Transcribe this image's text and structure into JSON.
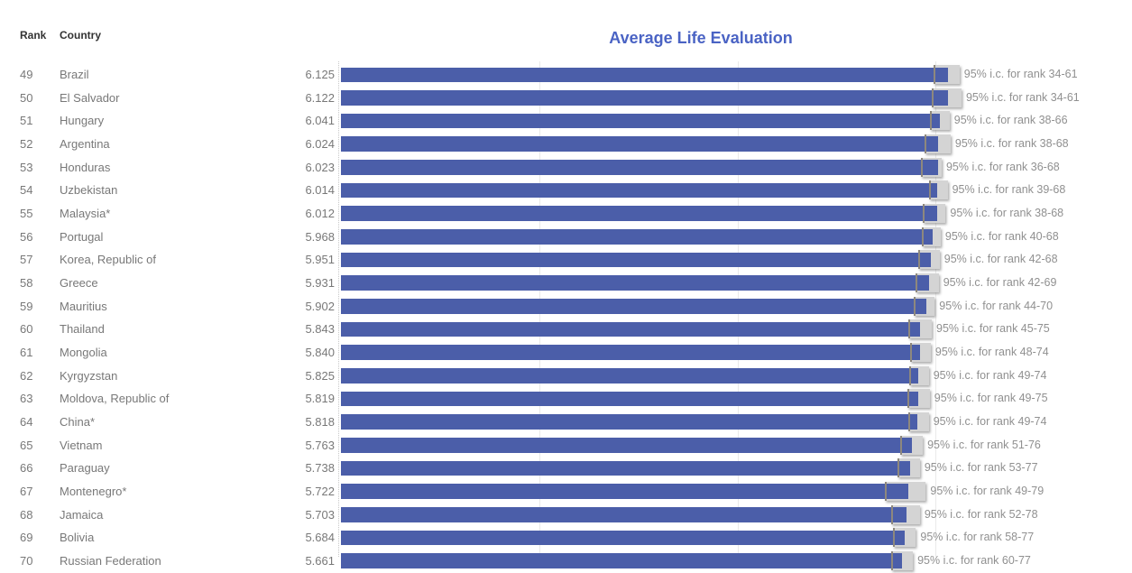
{
  "header": {
    "rank_label": "Rank",
    "country_label": "Country"
  },
  "chart_data": {
    "type": "bar",
    "title": "Average Life Evaluation",
    "title_color": "#4a63c4",
    "bar_color": "#4b5ea9",
    "ci_box_color": "#d4d4d4",
    "ci_text_color": "#909090",
    "label_text_color": "#787878",
    "xlim": [
      0,
      6.5
    ],
    "gridlines": [
      2,
      4,
      6
    ],
    "grid_on": true,
    "legend_position": "none",
    "xlabel": "",
    "ylabel": "",
    "rows": [
      {
        "rank": "49",
        "country": "Brazil",
        "value": 6.125,
        "value_label": "6.125",
        "ci_label": "95% i.c. for rank 34-61",
        "ci_low": 5.98,
        "ci_high": 6.24
      },
      {
        "rank": "50",
        "country": "El Salvador",
        "value": 6.122,
        "value_label": "6.122",
        "ci_label": "95% i.c. for rank 34-61",
        "ci_low": 5.96,
        "ci_high": 6.26
      },
      {
        "rank": "51",
        "country": "Hungary",
        "value": 6.041,
        "value_label": "6.041",
        "ci_label": "95% i.c. for rank 38-66",
        "ci_low": 5.94,
        "ci_high": 6.14
      },
      {
        "rank": "52",
        "country": "Argentina",
        "value": 6.024,
        "value_label": "6.024",
        "ci_label": "95% i.c. for rank 38-68",
        "ci_low": 5.89,
        "ci_high": 6.15
      },
      {
        "rank": "53",
        "country": "Honduras",
        "value": 6.023,
        "value_label": "6.023",
        "ci_label": "95% i.c. for rank 36-68",
        "ci_low": 5.85,
        "ci_high": 6.06
      },
      {
        "rank": "54",
        "country": "Uzbekistan",
        "value": 6.014,
        "value_label": "6.014",
        "ci_label": "95% i.c. for rank 39-68",
        "ci_low": 5.93,
        "ci_high": 6.12
      },
      {
        "rank": "55",
        "country": "Malaysia*",
        "value": 6.012,
        "value_label": "6.012",
        "ci_label": "95% i.c. for rank 38-68",
        "ci_low": 5.87,
        "ci_high": 6.1
      },
      {
        "rank": "56",
        "country": "Portugal",
        "value": 5.968,
        "value_label": "5.968",
        "ci_label": "95% i.c. for rank 40-68",
        "ci_low": 5.86,
        "ci_high": 6.05
      },
      {
        "rank": "57",
        "country": "Korea, Republic of",
        "value": 5.951,
        "value_label": "5.951",
        "ci_label": "95% i.c. for rank 42-68",
        "ci_low": 5.82,
        "ci_high": 6.04
      },
      {
        "rank": "58",
        "country": "Greece",
        "value": 5.931,
        "value_label": "5.931",
        "ci_label": "95% i.c. for rank 42-69",
        "ci_low": 5.8,
        "ci_high": 6.03
      },
      {
        "rank": "59",
        "country": "Mauritius",
        "value": 5.902,
        "value_label": "5.902",
        "ci_label": "95% i.c. for rank 44-70",
        "ci_low": 5.78,
        "ci_high": 5.99
      },
      {
        "rank": "60",
        "country": "Thailand",
        "value": 5.843,
        "value_label": "5.843",
        "ci_label": "95% i.c. for rank 45-75",
        "ci_low": 5.72,
        "ci_high": 5.96
      },
      {
        "rank": "61",
        "country": "Mongolia",
        "value": 5.84,
        "value_label": "5.840",
        "ci_label": "95% i.c. for rank 48-74",
        "ci_low": 5.74,
        "ci_high": 5.95
      },
      {
        "rank": "62",
        "country": "Kyrgyzstan",
        "value": 5.825,
        "value_label": "5.825",
        "ci_label": "95% i.c. for rank 49-74",
        "ci_low": 5.73,
        "ci_high": 5.93
      },
      {
        "rank": "63",
        "country": "Moldova, Republic of",
        "value": 5.819,
        "value_label": "5.819",
        "ci_label": "95% i.c. for rank 49-75",
        "ci_low": 5.71,
        "ci_high": 5.94
      },
      {
        "rank": "64",
        "country": "China*",
        "value": 5.818,
        "value_label": "5.818",
        "ci_label": "95% i.c. for rank 49-74",
        "ci_low": 5.72,
        "ci_high": 5.93
      },
      {
        "rank": "65",
        "country": "Vietnam",
        "value": 5.763,
        "value_label": "5.763",
        "ci_label": "95% i.c. for rank 51-76",
        "ci_low": 5.64,
        "ci_high": 5.87
      },
      {
        "rank": "66",
        "country": "Paraguay",
        "value": 5.738,
        "value_label": "5.738",
        "ci_label": "95% i.c. for rank 53-77",
        "ci_low": 5.61,
        "ci_high": 5.84
      },
      {
        "rank": "67",
        "country": "Montenegro*",
        "value": 5.722,
        "value_label": "5.722",
        "ci_label": "95% i.c. for rank 49-79",
        "ci_low": 5.49,
        "ci_high": 5.9
      },
      {
        "rank": "68",
        "country": "Jamaica",
        "value": 5.703,
        "value_label": "5.703",
        "ci_label": "95% i.c. for rank 52-78",
        "ci_low": 5.55,
        "ci_high": 5.84
      },
      {
        "rank": "69",
        "country": "Bolivia",
        "value": 5.684,
        "value_label": "5.684",
        "ci_label": "95% i.c. for rank 58-77",
        "ci_low": 5.57,
        "ci_high": 5.8
      },
      {
        "rank": "70",
        "country": "Russian Federation",
        "value": 5.661,
        "value_label": "5.661",
        "ci_label": "95% i.c. for rank 60-77",
        "ci_low": 5.55,
        "ci_high": 5.77
      }
    ]
  }
}
